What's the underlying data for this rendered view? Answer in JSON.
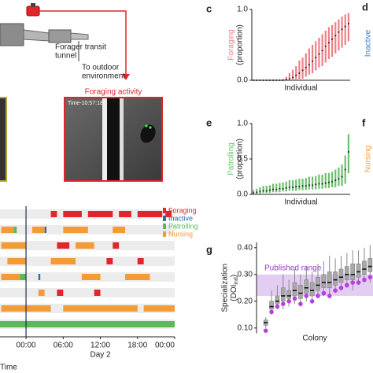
{
  "diagram": {
    "tunnel_label": [
      "Forager transit",
      "tunnel"
    ],
    "outdoor_label": [
      "To outdoor",
      "environment"
    ],
    "video_title": "Foraging activity",
    "timestamp": "Time-10:57:18"
  },
  "cropped_panels": [
    {
      "panel": "d",
      "ylabel": "Inactive",
      "color": "#3a7fc1"
    },
    {
      "panel": "f",
      "ylabel": "Nursing",
      "color": "#f0a040"
    }
  ],
  "chart_data": [
    {
      "type": "range",
      "panel": "c",
      "ylabel": [
        "Foraging",
        "(proportion)"
      ],
      "xlabel": "Individual",
      "color": "#ee7f88",
      "ylim": [
        0,
        1
      ],
      "yticks": [
        {
          "value": 0,
          "label": "0.0"
        },
        {
          "value": 1,
          "label": "1.0"
        }
      ],
      "values": [
        0,
        0,
        0,
        0,
        0,
        0,
        0,
        0,
        0,
        0,
        0.01,
        0.02,
        0.04,
        0.07,
        0.1,
        0.14,
        0.18,
        0.22,
        0.27,
        0.32,
        0.37,
        0.42,
        0.48,
        0.53,
        0.58,
        0.63,
        0.68,
        0.72,
        0.76,
        0.8
      ],
      "low": [
        0,
        0,
        0,
        0,
        0,
        0,
        0,
        0,
        0,
        0,
        0,
        0,
        0,
        0,
        0,
        0.02,
        0.05,
        0.08,
        0.1,
        0.14,
        0.18,
        0.2,
        0.25,
        0.3,
        0.33,
        0.38,
        0.42,
        0.46,
        0.5,
        0.55
      ],
      "high": [
        0,
        0,
        0,
        0,
        0,
        0,
        0,
        0,
        0,
        0.02,
        0.05,
        0.1,
        0.15,
        0.2,
        0.28,
        0.32,
        0.38,
        0.45,
        0.5,
        0.55,
        0.6,
        0.65,
        0.7,
        0.75,
        0.78,
        0.82,
        0.86,
        0.9,
        0.93,
        0.95
      ]
    },
    {
      "type": "range",
      "panel": "e",
      "ylabel": [
        "Patrolling",
        "(proportion)"
      ],
      "xlabel": "Individual",
      "color": "#6cc06c",
      "ylim": [
        0,
        1
      ],
      "yticks": [
        {
          "value": 0,
          "label": "0.0"
        },
        0.5,
        {
          "value": 1,
          "label": "1.0"
        }
      ],
      "values": [
        0.02,
        0.03,
        0.04,
        0.05,
        0.05,
        0.06,
        0.07,
        0.07,
        0.08,
        0.08,
        0.09,
        0.1,
        0.1,
        0.11,
        0.11,
        0.12,
        0.12,
        0.13,
        0.13,
        0.14,
        0.15,
        0.15,
        0.16,
        0.17,
        0.18,
        0.2,
        0.22,
        0.25,
        0.35,
        0.6
      ],
      "low": [
        0,
        0.01,
        0.01,
        0.02,
        0.02,
        0.02,
        0.03,
        0.03,
        0.03,
        0.04,
        0.04,
        0.05,
        0.05,
        0.05,
        0.06,
        0.06,
        0.06,
        0.07,
        0.07,
        0.07,
        0.08,
        0.08,
        0.09,
        0.09,
        0.1,
        0.1,
        0.12,
        0.12,
        0.15,
        0.3
      ],
      "high": [
        0.06,
        0.08,
        0.1,
        0.12,
        0.12,
        0.13,
        0.15,
        0.15,
        0.16,
        0.17,
        0.18,
        0.2,
        0.2,
        0.21,
        0.22,
        0.22,
        0.23,
        0.25,
        0.25,
        0.26,
        0.28,
        0.28,
        0.3,
        0.3,
        0.32,
        0.35,
        0.38,
        0.42,
        0.55,
        0.85
      ]
    },
    {
      "type": "box",
      "panel": "g",
      "ylabel": [
        "Specialization",
        "(DOI",
        "ind",
        ")"
      ],
      "xlabel": "Colony",
      "color": "#a8a8a8",
      "point_color": "#b83fe0",
      "band": {
        "label": "Published range",
        "range": [
          0.22,
          0.3
        ],
        "color": "#e4cdf3",
        "label_color": "#a030d0"
      },
      "ylim": [
        0.08,
        0.42
      ],
      "yticks": [
        {
          "value": 0.1,
          "label": "0.10"
        },
        {
          "value": 0.2,
          "label": "0.20"
        },
        {
          "value": 0.3,
          "label": "0.30"
        },
        {
          "value": 0.4,
          "label": "0.40"
        }
      ],
      "median": [
        0.12,
        0.18,
        0.2,
        0.22,
        0.22,
        0.24,
        0.23,
        0.25,
        0.24,
        0.26,
        0.27,
        0.27,
        0.28,
        0.29,
        0.3,
        0.3,
        0.31,
        0.32,
        0.33
      ],
      "q1": [
        0.11,
        0.17,
        0.19,
        0.2,
        0.21,
        0.22,
        0.21,
        0.23,
        0.22,
        0.24,
        0.25,
        0.25,
        0.26,
        0.27,
        0.28,
        0.28,
        0.29,
        0.3,
        0.31
      ],
      "q3": [
        0.13,
        0.2,
        0.22,
        0.25,
        0.24,
        0.27,
        0.26,
        0.28,
        0.27,
        0.29,
        0.3,
        0.31,
        0.31,
        0.32,
        0.33,
        0.34,
        0.34,
        0.35,
        0.36
      ],
      "lo": [
        0.1,
        0.15,
        0.17,
        0.17,
        0.18,
        0.19,
        0.18,
        0.2,
        0.19,
        0.21,
        0.22,
        0.21,
        0.23,
        0.24,
        0.25,
        0.24,
        0.26,
        0.27,
        0.27
      ],
      "hi": [
        0.14,
        0.24,
        0.26,
        0.3,
        0.28,
        0.32,
        0.3,
        0.33,
        0.31,
        0.34,
        0.35,
        0.37,
        0.36,
        0.37,
        0.38,
        0.39,
        0.39,
        0.4,
        0.41
      ],
      "points": [
        0.09,
        0.16,
        0.18,
        0.19,
        0.2,
        0.21,
        0.19,
        0.22,
        0.2,
        0.22,
        0.23,
        0.22,
        0.24,
        0.25,
        0.26,
        0.27,
        0.27,
        0.28,
        0.29
      ]
    },
    {
      "type": "ethogram",
      "xlabel": "Day 2",
      "footer": "Time",
      "xlim": [
        -4.2,
        24
      ],
      "xticks": [
        {
          "value": 0,
          "label": "00:00"
        },
        {
          "value": 6,
          "label": "06:00"
        },
        {
          "value": 12,
          "label": "12:00"
        },
        {
          "value": 18,
          "label": "18:00"
        },
        {
          "value": 24,
          "label": "00:00"
        }
      ],
      "series": [
        {
          "name": "Foraging",
          "color": "#e0262b",
          "intervals": [
            [
              0,
              4,
              5
            ],
            [
              0,
              6,
              9
            ],
            [
              0,
              10,
              14
            ],
            [
              0,
              15,
              17
            ],
            [
              0,
              18,
              22
            ],
            [
              0,
              22.5,
              23.5
            ],
            [
              2,
              5,
              7
            ],
            [
              2,
              14,
              15
            ],
            [
              3,
              13,
              14
            ],
            [
              3,
              18,
              19
            ],
            [
              5,
              5,
              6
            ],
            [
              5,
              11,
              12
            ],
            [
              6,
              7,
              8
            ]
          ]
        },
        {
          "name": "Inactive",
          "color": "#2e6da4",
          "intervals": [
            [
              1,
              3,
              3.3
            ],
            [
              3,
              -1,
              -0.7
            ],
            [
              4,
              2,
              2.3
            ]
          ]
        },
        {
          "name": "Patrolling",
          "color": "#5cb85c",
          "intervals": [
            [
              1,
              -2,
              -1.5
            ],
            [
              3,
              -3,
              -2.5
            ],
            [
              4,
              -1,
              0
            ],
            [
              7,
              -4.2,
              24
            ]
          ]
        },
        {
          "name": "Nursing",
          "color": "#f39c34",
          "intervals": [
            [
              1,
              -4,
              -2
            ],
            [
              1,
              1,
              3
            ],
            [
              1,
              6,
              10
            ],
            [
              1,
              14,
              16
            ],
            [
              2,
              -4,
              0
            ],
            [
              2,
              8,
              11
            ],
            [
              3,
              -3,
              0
            ],
            [
              3,
              4,
              8
            ],
            [
              4,
              -4,
              -1
            ],
            [
              4,
              9,
              12
            ],
            [
              4,
              16,
              20
            ],
            [
              5,
              2,
              3
            ],
            [
              6,
              -4,
              4
            ],
            [
              6,
              6,
              18
            ],
            [
              6,
              19,
              24
            ]
          ]
        }
      ]
    }
  ]
}
